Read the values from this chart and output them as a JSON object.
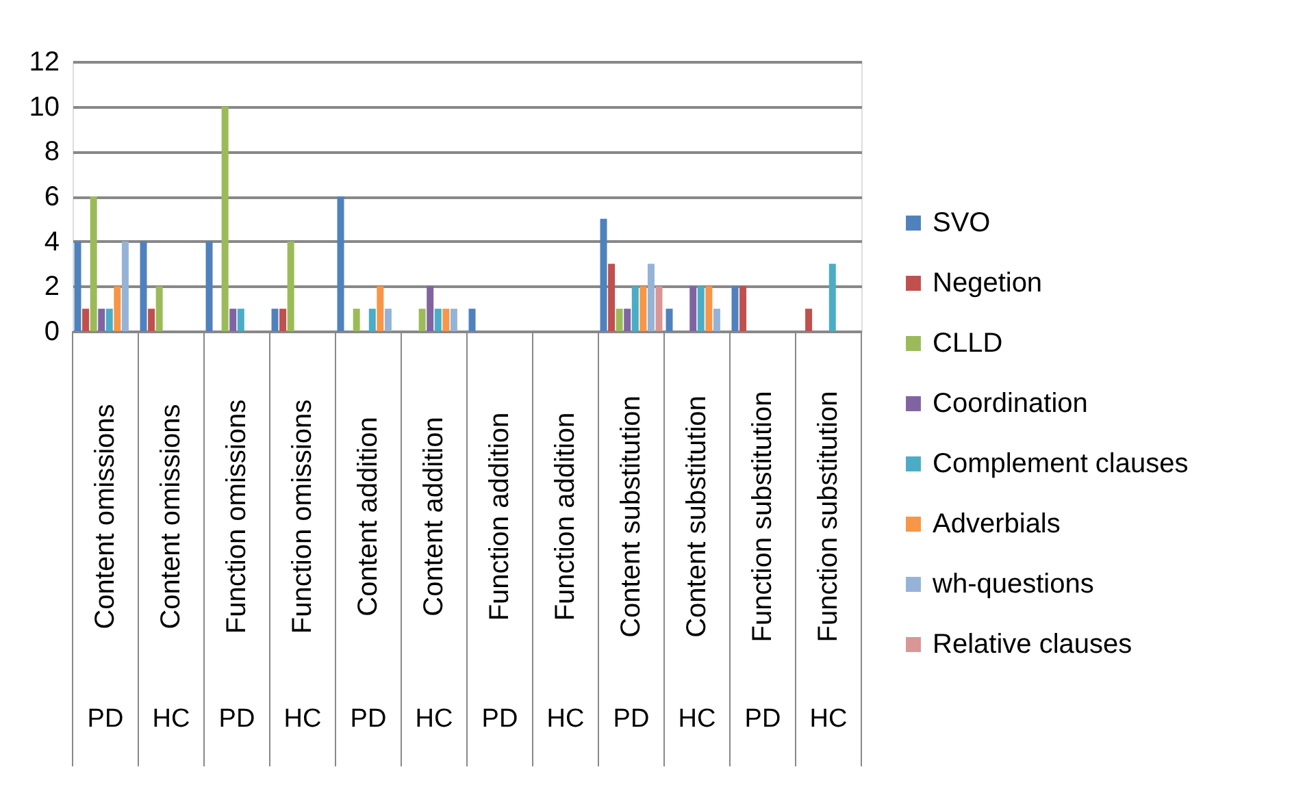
{
  "chart_data": {
    "type": "bar",
    "categories": [
      "Content omissions",
      "Content omissions",
      "Function omissions",
      "Function omissions",
      "Content addition",
      "Content addition",
      "Function addition",
      "Function addition",
      "Content substitution",
      "Content substitution",
      "Function substitution",
      "Function substitution"
    ],
    "series": [
      {
        "name": "SVO",
        "color": "#4f81bd",
        "values": [
          4,
          4,
          4,
          1,
          6,
          0,
          1,
          0,
          5,
          1,
          2,
          0
        ]
      },
      {
        "name": "Negetion",
        "color": "#c0504d",
        "values": [
          1,
          1,
          0,
          1,
          0,
          0,
          0,
          0,
          3,
          0,
          2,
          1
        ]
      },
      {
        "name": "CLLD",
        "color": "#9bbb59",
        "values": [
          6,
          2,
          10,
          4,
          1,
          1,
          0,
          0,
          1,
          0,
          0,
          0
        ]
      },
      {
        "name": "Coordination",
        "color": "#8064a2",
        "values": [
          1,
          0,
          1,
          0,
          0,
          2,
          0,
          0,
          1,
          2,
          0,
          0
        ]
      },
      {
        "name": "Complement clauses",
        "color": "#4bacc6",
        "values": [
          1,
          0,
          1,
          0,
          1,
          1,
          0,
          0,
          2,
          2,
          0,
          3
        ]
      },
      {
        "name": "Adverbials",
        "color": "#f79646",
        "values": [
          2,
          0,
          0,
          0,
          2,
          1,
          0,
          0,
          2,
          2,
          0,
          0
        ]
      },
      {
        "name": "wh-questions",
        "color": "#95b3d7",
        "values": [
          4,
          0,
          0,
          0,
          1,
          1,
          0,
          0,
          3,
          1,
          0,
          0
        ]
      },
      {
        "name": "Relative clauses",
        "color": "#d99694",
        "values": [
          0,
          0,
          0,
          0,
          0,
          0,
          0,
          0,
          2,
          0,
          0,
          0
        ]
      }
    ],
    "annotations": [
      "PD",
      "HC",
      "PD",
      "HC",
      "PD",
      "HC",
      "PD",
      "HC",
      "PD",
      "HC",
      "PD",
      "HC"
    ],
    "ylim": [
      0,
      12
    ],
    "yticks": [
      0,
      2,
      4,
      6,
      8,
      10,
      12
    ],
    "grid": "y",
    "legend": "right"
  }
}
